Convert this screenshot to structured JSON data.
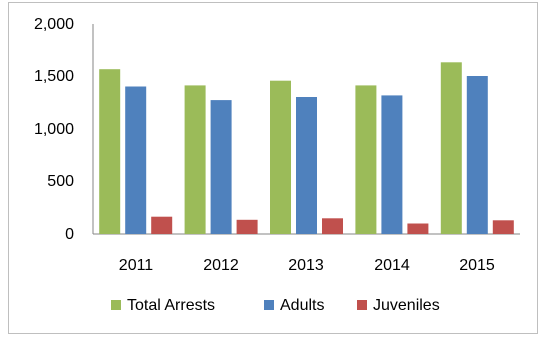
{
  "chart_data": {
    "type": "bar",
    "categories": [
      "2011",
      "2012",
      "2013",
      "2014",
      "2015"
    ],
    "series": [
      {
        "name": "Total Arrests",
        "color": "#9BBB59",
        "values": [
          1570,
          1415,
          1460,
          1415,
          1635
        ]
      },
      {
        "name": "Adults",
        "color": "#4F81BD",
        "values": [
          1405,
          1275,
          1305,
          1320,
          1505
        ]
      },
      {
        "name": "Juveniles",
        "color": "#C0504D",
        "values": [
          165,
          135,
          150,
          100,
          130
        ]
      }
    ],
    "yticks": [
      "0",
      "500",
      "1,000",
      "1,500",
      "2,000"
    ],
    "ylim": [
      0,
      2000
    ],
    "grid": false,
    "legend_position": "bottom"
  }
}
